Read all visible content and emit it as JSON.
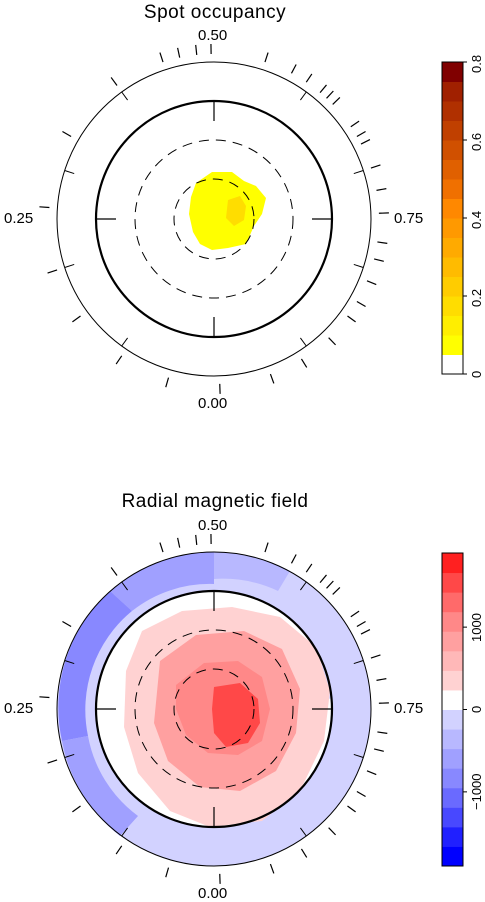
{
  "maps": [
    {
      "title": "Spot occupancy",
      "phase_labels": {
        "top": "0.50",
        "left": "0.25",
        "right": "0.75",
        "bottom": "0.00"
      },
      "colorbar": {
        "ticks": [
          {
            "value": 0,
            "label": "0"
          },
          {
            "value": 0.2,
            "label": "0.2"
          },
          {
            "value": 0.4,
            "label": "0.4"
          },
          {
            "value": 0.6,
            "label": "0.6"
          },
          {
            "value": 0.8,
            "label": "0.8"
          }
        ],
        "range": [
          0,
          0.8
        ],
        "colors": [
          "#ffffff",
          "#ffff00",
          "#ffee00",
          "#ffdd00",
          "#ffcc00",
          "#ffbb00",
          "#ffaa00",
          "#ff9900",
          "#ff8800",
          "#f07000",
          "#e06000",
          "#d05000",
          "#c04000",
          "#b03000",
          "#a02000",
          "#800000"
        ]
      }
    },
    {
      "title": "Radial magnetic field",
      "phase_labels": {
        "top": "0.50",
        "left": "0.25",
        "right": "0.75",
        "bottom": "0.00"
      },
      "colorbar": {
        "ticks": [
          {
            "value": -1000,
            "label": "−1000"
          },
          {
            "value": 0,
            "label": "0"
          },
          {
            "value": 1000,
            "label": "1000"
          }
        ],
        "range": [
          -1900,
          1900
        ],
        "colors": [
          "#0000ff",
          "#2020ff",
          "#4848ff",
          "#6a6aff",
          "#8888ff",
          "#a0a0ff",
          "#b8b8ff",
          "#d2d2ff",
          "#ffffff",
          "#ffd2d2",
          "#ffb8b8",
          "#ffa0a0",
          "#ff8888",
          "#ff6a6a",
          "#ff4848",
          "#ff2020"
        ]
      }
    }
  ]
}
